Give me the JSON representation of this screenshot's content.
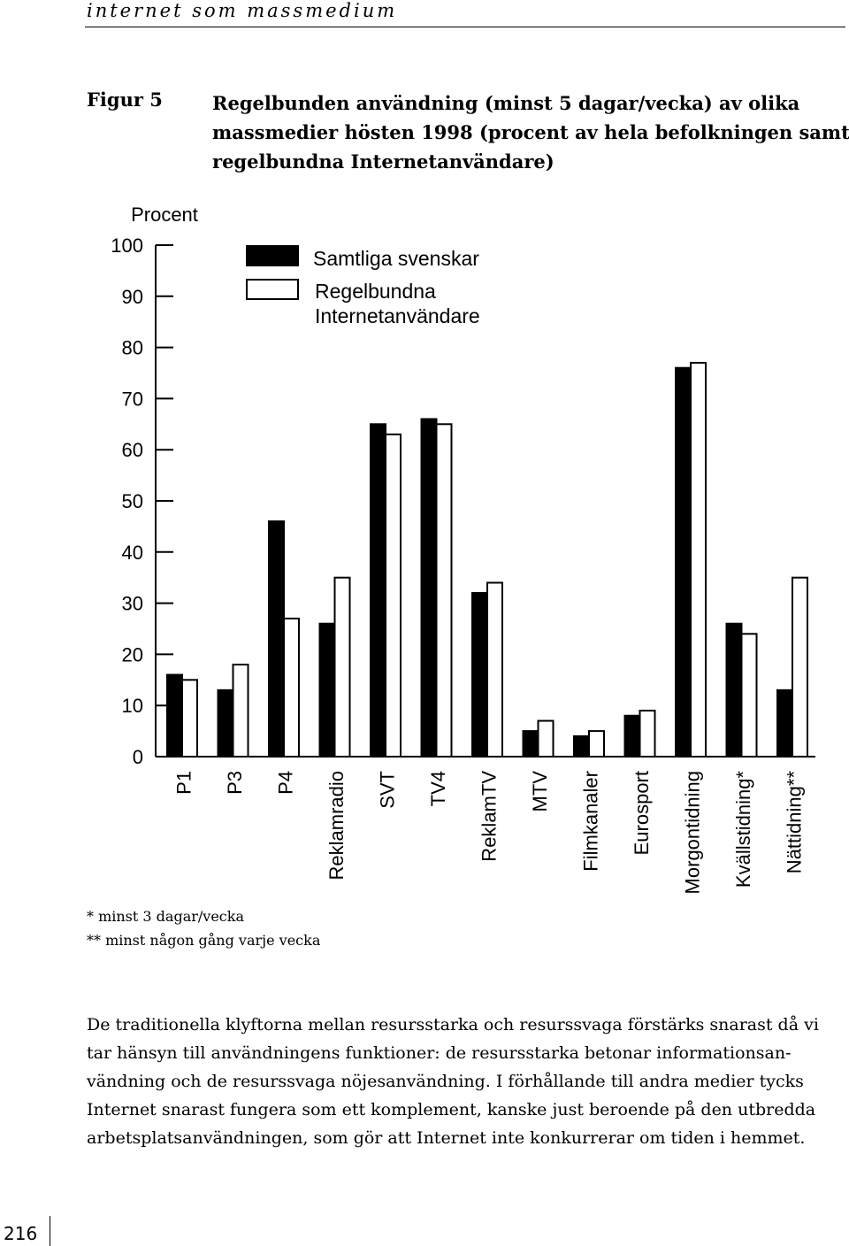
{
  "page": {
    "running_head": "internet som massmedium",
    "page_number": "216"
  },
  "figure": {
    "label": "Figur 5",
    "caption_lines": [
      "Regelbunden användning (minst 5 dagar/vecka) av olika",
      "massmedier hösten 1998 (procent av hela befolkningen samt",
      "regelbundna Internetanvändare)"
    ]
  },
  "chart_data": {
    "type": "bar",
    "ylabel": "Procent",
    "ylim": [
      0,
      100
    ],
    "yticks": [
      0,
      10,
      20,
      30,
      40,
      50,
      60,
      70,
      80,
      90,
      100
    ],
    "categories": [
      "P1",
      "P3",
      "P4",
      "Reklamradio",
      "SVT",
      "TV4",
      "ReklamTV",
      "MTV",
      "Filmkanaler",
      "Eurosport",
      "Morgontidning",
      "Kvällstidning*",
      "Nättidning**"
    ],
    "series": [
      {
        "name": "Samtliga svenskar",
        "color": "#000000",
        "values": [
          16,
          13,
          46,
          26,
          65,
          66,
          32,
          5,
          4,
          8,
          76,
          26,
          13
        ]
      },
      {
        "name": "Regelbundna Internetanvändare",
        "name_lines": [
          "Regelbundna",
          "Internetanvändare"
        ],
        "color": "#ffffff",
        "values": [
          15,
          18,
          27,
          35,
          63,
          65,
          34,
          7,
          5,
          9,
          77,
          24,
          35
        ]
      }
    ],
    "legend_position": "top-left",
    "grid": false
  },
  "footnotes": [
    "* minst 3 dagar/vecka",
    "** minst någon gång varje vecka"
  ],
  "body_lines": [
    "De traditionella klyftorna mellan resursstarka och resurssvaga förstärks snarast då vi",
    "tar hänsyn till användningens funktioner: de resursstarka betonar informationsan-",
    "vändning och de resurssvaga nöjesanvändning. I förhållande till andra medier tycks",
    "Internet snarast fungera som ett komplement, kanske just beroende på den utbredda",
    "arbetsplatsanvändningen, som gör att Internet inte konkurrerar om tiden i hemmet."
  ]
}
